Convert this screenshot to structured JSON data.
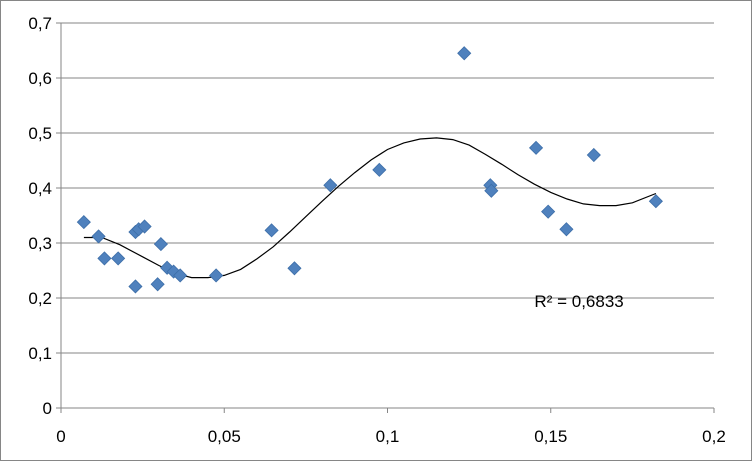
{
  "chart_data": {
    "type": "scatter",
    "title": "",
    "xlabel": "",
    "ylabel": "",
    "xlim": [
      0,
      0.2
    ],
    "ylim": [
      0,
      0.7
    ],
    "x_ticks": [
      "0",
      "0,05",
      "0,1",
      "0,15",
      "0,2"
    ],
    "y_ticks": [
      "0",
      "0,1",
      "0,2",
      "0,3",
      "0,4",
      "0,5",
      "0,6",
      "0,7"
    ],
    "x_tick_values": [
      0,
      0.05,
      0.1,
      0.15,
      0.2
    ],
    "y_tick_values": [
      0,
      0.1,
      0.2,
      0.3,
      0.4,
      0.5,
      0.6,
      0.7
    ],
    "grid": "horizontal",
    "legend": "none",
    "series": [
      {
        "marker": "diamond",
        "color": "#4F81BD",
        "points": [
          [
            0.007,
            0.338
          ],
          [
            0.0115,
            0.312
          ],
          [
            0.0133,
            0.272
          ],
          [
            0.0175,
            0.272
          ],
          [
            0.0228,
            0.221
          ],
          [
            0.0228,
            0.32
          ],
          [
            0.0238,
            0.325
          ],
          [
            0.0256,
            0.33
          ],
          [
            0.0296,
            0.225
          ],
          [
            0.0306,
            0.298
          ],
          [
            0.0325,
            0.255
          ],
          [
            0.0345,
            0.248
          ],
          [
            0.0365,
            0.241
          ],
          [
            0.0475,
            0.241
          ],
          [
            0.0645,
            0.323
          ],
          [
            0.0715,
            0.254
          ],
          [
            0.0825,
            0.405
          ],
          [
            0.0975,
            0.433
          ],
          [
            0.1235,
            0.645
          ],
          [
            0.1315,
            0.405
          ],
          [
            0.1318,
            0.395
          ],
          [
            0.1455,
            0.473
          ],
          [
            0.1492,
            0.357
          ],
          [
            0.1548,
            0.325
          ],
          [
            0.1632,
            0.46
          ],
          [
            0.1822,
            0.376
          ]
        ]
      }
    ],
    "trendline": {
      "type": "polynomial",
      "color": "#000000",
      "points": [
        [
          0.007,
          0.31
        ],
        [
          0.0125,
          0.31
        ],
        [
          0.018,
          0.297
        ],
        [
          0.025,
          0.275
        ],
        [
          0.03,
          0.259
        ],
        [
          0.035,
          0.245
        ],
        [
          0.04,
          0.237
        ],
        [
          0.045,
          0.237
        ],
        [
          0.05,
          0.241
        ],
        [
          0.055,
          0.252
        ],
        [
          0.06,
          0.271
        ],
        [
          0.065,
          0.293
        ],
        [
          0.07,
          0.32
        ],
        [
          0.075,
          0.348
        ],
        [
          0.08,
          0.376
        ],
        [
          0.085,
          0.403
        ],
        [
          0.09,
          0.428
        ],
        [
          0.095,
          0.451
        ],
        [
          0.1,
          0.47
        ],
        [
          0.105,
          0.482
        ],
        [
          0.11,
          0.489
        ],
        [
          0.115,
          0.491
        ],
        [
          0.12,
          0.488
        ],
        [
          0.125,
          0.478
        ],
        [
          0.13,
          0.461
        ],
        [
          0.135,
          0.443
        ],
        [
          0.14,
          0.424
        ],
        [
          0.145,
          0.407
        ],
        [
          0.15,
          0.392
        ],
        [
          0.155,
          0.38
        ],
        [
          0.16,
          0.371
        ],
        [
          0.165,
          0.368
        ],
        [
          0.17,
          0.368
        ],
        [
          0.175,
          0.373
        ],
        [
          0.1822,
          0.39
        ]
      ]
    },
    "annotations": [
      {
        "text": "R² = 0,6833",
        "x": 0.145,
        "y": 0.195
      }
    ]
  }
}
